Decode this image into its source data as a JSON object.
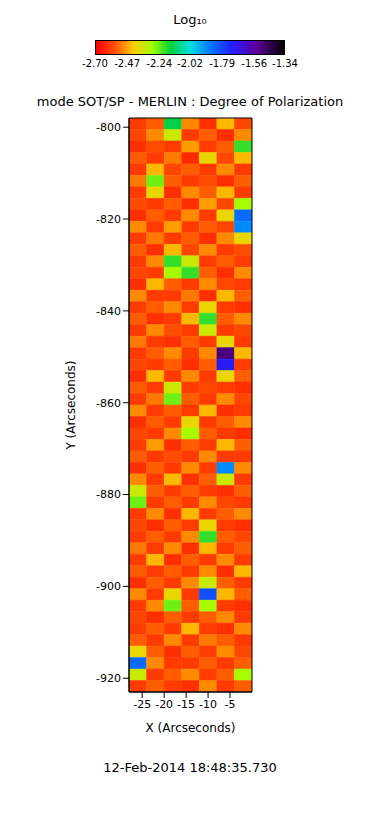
{
  "chart_data": {
    "type": "heatmap",
    "title": "mode SOT/SP - MERLIN : Degree of Polarization",
    "x_label": "X (Arcseconds)",
    "y_label": "Y (Arcseconds)",
    "date": "12-Feb-2014 18:48:35.730",
    "xlim": [
      -28,
      0
    ],
    "xticks": [
      -25,
      -20,
      -15,
      -10,
      -5
    ],
    "ylim": [
      -923,
      -798
    ],
    "yticks": [
      -920,
      -900,
      -880,
      -860,
      -840,
      -820,
      -800
    ],
    "colorbar": {
      "title": "Log₁₀",
      "range": [
        -2.7,
        -1.34
      ],
      "ticks": [
        {
          "value": -2.7,
          "label": "-2.70"
        },
        -2.47,
        -2.24,
        -2.02,
        -1.79,
        -1.56,
        -1.34
      ]
    },
    "cells": {
      "x_edges": [
        -28,
        -24,
        -20,
        -16,
        -12,
        -8,
        -4,
        0
      ],
      "y_edges": [
        -798,
        -800.5,
        -803,
        -805.5,
        -808,
        -810.5,
        -813,
        -815.5,
        -818,
        -820.5,
        -823,
        -825.5,
        -828,
        -830.5,
        -833,
        -835.5,
        -838,
        -840.5,
        -843,
        -845.5,
        -848,
        -850.5,
        -853,
        -855.5,
        -858,
        -860.5,
        -863,
        -865.5,
        -868,
        -870.5,
        -873,
        -875.5,
        -878,
        -880.5,
        -883,
        -885.5,
        -888,
        -890.5,
        -893,
        -895.5,
        -898,
        -900.5,
        -903,
        -905.5,
        -908,
        -910.5,
        -913,
        -915.5,
        -918,
        -920.5,
        -923
      ],
      "values": [
        [
          -2.6,
          -2.55,
          -2.15,
          -2.5,
          -2.62,
          -2.45,
          -2.58
        ],
        [
          -2.58,
          -2.5,
          -2.35,
          -2.6,
          -2.55,
          -2.62,
          -2.5
        ],
        [
          -2.62,
          -2.57,
          -2.6,
          -2.48,
          -2.6,
          -2.55,
          -2.2
        ],
        [
          -2.55,
          -2.6,
          -2.52,
          -2.63,
          -2.4,
          -2.58,
          -2.45
        ],
        [
          -2.6,
          -2.45,
          -2.58,
          -2.55,
          -2.6,
          -2.5,
          -2.6
        ],
        [
          -2.52,
          -2.25,
          -2.55,
          -2.6,
          -2.57,
          -2.62,
          -2.55
        ],
        [
          -2.6,
          -2.4,
          -2.62,
          -2.5,
          -2.55,
          -2.45,
          -2.6
        ],
        [
          -2.57,
          -2.6,
          -2.55,
          -2.62,
          -2.48,
          -2.58,
          -2.3
        ],
        [
          -2.62,
          -2.55,
          -2.6,
          -2.5,
          -2.6,
          -2.4,
          -1.85
        ],
        [
          -2.5,
          -2.6,
          -2.48,
          -2.6,
          -2.55,
          -2.58,
          -1.9
        ],
        [
          -2.6,
          -2.52,
          -2.6,
          -2.55,
          -2.62,
          -2.5,
          -2.4
        ],
        [
          -2.55,
          -2.62,
          -2.45,
          -2.58,
          -2.5,
          -2.6,
          -2.57
        ],
        [
          -2.6,
          -2.5,
          -2.2,
          -2.35,
          -2.6,
          -2.55,
          -2.6
        ],
        [
          -2.58,
          -2.6,
          -2.3,
          -2.2,
          -2.55,
          -2.62,
          -2.5
        ],
        [
          -2.62,
          -2.45,
          -2.55,
          -2.6,
          -2.5,
          -2.58,
          -2.6
        ],
        [
          -2.5,
          -2.6,
          -2.6,
          -2.52,
          -2.62,
          -2.45,
          -2.55
        ],
        [
          -2.6,
          -2.55,
          -2.5,
          -2.6,
          -2.4,
          -2.6,
          -2.62
        ],
        [
          -2.55,
          -2.62,
          -2.6,
          -2.45,
          -2.2,
          -2.55,
          -2.5
        ],
        [
          -2.6,
          -2.5,
          -2.57,
          -2.6,
          -2.35,
          -2.6,
          -2.58
        ],
        [
          -2.52,
          -2.6,
          -2.62,
          -2.55,
          -2.6,
          -2.4,
          -2.6
        ],
        [
          -2.6,
          -2.55,
          -2.5,
          -2.6,
          -2.5,
          -1.5,
          -2.45
        ],
        [
          -2.58,
          -2.6,
          -2.55,
          -2.62,
          -2.55,
          -1.7,
          -2.6
        ],
        [
          -2.62,
          -2.45,
          -2.6,
          -2.5,
          -2.6,
          -2.4,
          -2.55
        ],
        [
          -2.55,
          -2.6,
          -2.35,
          -2.6,
          -2.58,
          -2.6,
          -2.62
        ],
        [
          -2.6,
          -2.52,
          -2.25,
          -2.55,
          -2.6,
          -2.5,
          -2.58
        ],
        [
          -2.5,
          -2.6,
          -2.55,
          -2.6,
          -2.45,
          -2.62,
          -2.6
        ],
        [
          -2.62,
          -2.55,
          -2.6,
          -2.4,
          -2.6,
          -2.55,
          -2.5
        ],
        [
          -2.58,
          -2.6,
          -2.5,
          -2.3,
          -2.55,
          -2.6,
          -2.62
        ],
        [
          -2.6,
          -2.48,
          -2.62,
          -2.55,
          -2.6,
          -2.45,
          -2.55
        ],
        [
          -2.55,
          -2.6,
          -2.57,
          -2.6,
          -2.5,
          -2.6,
          -2.6
        ],
        [
          -2.62,
          -2.55,
          -2.6,
          -2.5,
          -2.6,
          -1.9,
          -2.5
        ],
        [
          -2.5,
          -2.6,
          -2.45,
          -2.62,
          -2.55,
          -2.35,
          -2.6
        ],
        [
          -2.35,
          -2.55,
          -2.6,
          -2.55,
          -2.6,
          -2.62,
          -2.55
        ],
        [
          -2.25,
          -2.6,
          -2.55,
          -2.6,
          -2.5,
          -2.58,
          -2.6
        ],
        [
          -2.6,
          -2.5,
          -2.62,
          -2.45,
          -2.6,
          -2.55,
          -2.5
        ],
        [
          -2.58,
          -2.62,
          -2.55,
          -2.6,
          -2.4,
          -2.6,
          -2.62
        ],
        [
          -2.6,
          -2.55,
          -2.6,
          -2.5,
          -2.2,
          -2.55,
          -2.58
        ],
        [
          -2.52,
          -2.6,
          -2.5,
          -2.62,
          -2.45,
          -2.6,
          -2.55
        ],
        [
          -2.6,
          -2.45,
          -2.62,
          -2.55,
          -2.6,
          -2.5,
          -2.6
        ],
        [
          -2.55,
          -2.6,
          -2.55,
          -2.6,
          -2.5,
          -2.62,
          -2.45
        ],
        [
          -2.62,
          -2.55,
          -2.6,
          -2.5,
          -2.35,
          -2.55,
          -2.6
        ],
        [
          -2.5,
          -2.6,
          -2.4,
          -2.6,
          -1.8,
          -2.45,
          -2.55
        ],
        [
          -2.6,
          -2.5,
          -2.25,
          -2.55,
          -2.3,
          -2.6,
          -2.62
        ],
        [
          -2.58,
          -2.62,
          -2.55,
          -2.6,
          -2.55,
          -2.5,
          -2.6
        ],
        [
          -2.6,
          -2.55,
          -2.6,
          -2.45,
          -2.6,
          -2.62,
          -2.5
        ],
        [
          -2.55,
          -2.6,
          -2.5,
          -2.6,
          -2.52,
          -2.55,
          -2.6
        ],
        [
          -2.4,
          -2.55,
          -2.62,
          -2.55,
          -2.6,
          -2.5,
          -2.58
        ],
        [
          -1.85,
          -2.5,
          -2.6,
          -2.6,
          -2.55,
          -2.6,
          -2.55
        ],
        [
          -2.35,
          -2.6,
          -2.55,
          -2.5,
          -2.6,
          -2.55,
          -2.3
        ],
        [
          -2.6,
          -2.55,
          -2.6,
          -2.62,
          -2.5,
          -2.6,
          -2.55
        ]
      ]
    }
  }
}
